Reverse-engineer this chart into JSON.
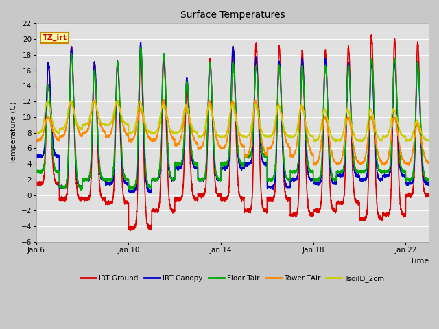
{
  "title": "Surface Temperatures",
  "xlabel": "Time",
  "ylabel": "Temperature (C)",
  "ylim": [
    -6,
    22
  ],
  "yticks": [
    -6,
    -4,
    -2,
    0,
    2,
    4,
    6,
    8,
    10,
    12,
    14,
    16,
    18,
    20,
    22
  ],
  "xtick_labels": [
    "Jan 6",
    "Jan 10",
    "Jan 14",
    "Jan 18",
    "Jan 22"
  ],
  "xtick_positions": [
    0,
    4,
    8,
    12,
    16
  ],
  "annotation_text": "TZ_irt",
  "annotation_color": "#cc0000",
  "annotation_bg": "#ffffaa",
  "annotation_border": "#cc8800",
  "fig_facecolor": "#c8c8c8",
  "plot_facecolor": "#e0e0e0",
  "grid_color": "#ffffff",
  "series": [
    {
      "label": "IRT Ground",
      "color": "#dd0000",
      "lw": 1.2
    },
    {
      "label": "IRT Canopy",
      "color": "#0000cc",
      "lw": 1.2
    },
    {
      "label": "Floor Tair",
      "color": "#00aa00",
      "lw": 1.2
    },
    {
      "label": "Tower TAir",
      "color": "#ff8800",
      "lw": 1.2
    },
    {
      "label": "TsoilD_2cm",
      "color": "#cccc00",
      "lw": 1.2
    }
  ],
  "days": 17,
  "figsize": [
    6.4,
    4.8
  ],
  "dpi": 100
}
